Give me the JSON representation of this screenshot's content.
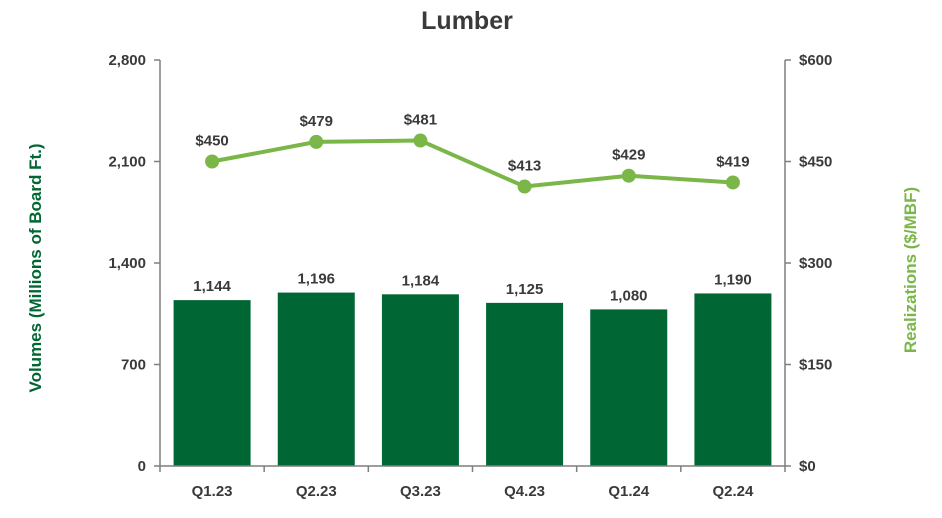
{
  "chart_data": {
    "type": "bar",
    "title": "Lumber",
    "categories": [
      "Q1.23",
      "Q2.23",
      "Q3.23",
      "Q4.23",
      "Q1.24",
      "Q2.24"
    ],
    "series": [
      {
        "name": "Volumes",
        "type": "bar",
        "axis": "left",
        "values": [
          1144,
          1196,
          1184,
          1125,
          1080,
          1190
        ],
        "labels": [
          "1,144",
          "1,196",
          "1,184",
          "1,125",
          "1,080",
          "1,190"
        ],
        "color": "#006633"
      },
      {
        "name": "Realizations",
        "type": "line",
        "axis": "right",
        "values": [
          450,
          479,
          481,
          413,
          429,
          419
        ],
        "labels": [
          "$450",
          "$479",
          "$481",
          "$413",
          "$429",
          "$419"
        ],
        "color": "#7ab648"
      }
    ],
    "ylabel": "Volumes (Millions of Board Ft.)",
    "ylim": [
      0,
      2800
    ],
    "yticks": [
      0,
      700,
      1400,
      2100,
      2800
    ],
    "ytick_labels": [
      "0",
      "700",
      "1,400",
      "2,100",
      "2,800"
    ],
    "y2label": "Realizations ($/MBF)",
    "y2lim": [
      0,
      600
    ],
    "y2ticks": [
      0,
      150,
      300,
      450,
      600
    ],
    "y2tick_labels": [
      "$0",
      "$150",
      "$300",
      "$450",
      "$600"
    ],
    "grid": false,
    "colors": {
      "left_label": "#006633",
      "right_label": "#7ab648",
      "axis": "#7f7f7f",
      "text": "#3a3a3a"
    }
  }
}
